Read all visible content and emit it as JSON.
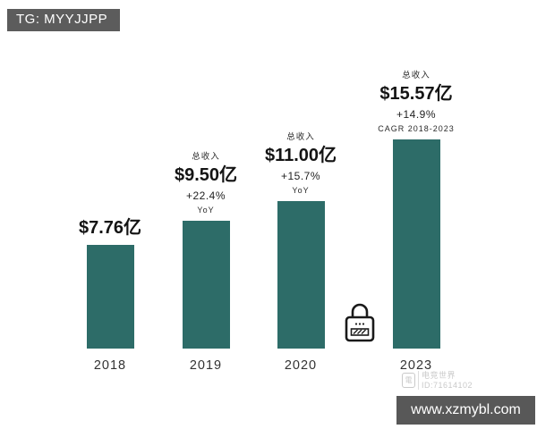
{
  "badge": {
    "text": "TG: MYYJJPP"
  },
  "chart_data": {
    "type": "bar",
    "title": "",
    "categories": [
      "2018",
      "2019",
      "2020",
      "2023"
    ],
    "values": [
      7.76,
      9.5,
      11.0,
      15.57
    ],
    "value_unit": "亿 (USD)",
    "bar_color": "#2D6C68",
    "ylim": [
      0,
      16
    ],
    "grid": false,
    "legend": false,
    "groups": [
      {
        "year": "2018",
        "header": "",
        "value": "$7.76亿",
        "growth": "",
        "growth_basis": ""
      },
      {
        "year": "2019",
        "header": "总收入",
        "value": "$9.50亿",
        "growth": "+22.4%",
        "growth_basis": "YoY"
      },
      {
        "year": "2020",
        "header": "总收入",
        "value": "$11.00亿",
        "growth": "+15.7%",
        "growth_basis": "YoY"
      },
      {
        "year": "2023",
        "header": "总收入",
        "value": "$15.57亿",
        "growth": "+14.9%",
        "growth_basis": "CAGR 2018-2023"
      }
    ]
  },
  "icons": {
    "lock": "padlock-icon"
  },
  "watermark": {
    "site": "电竞世界",
    "id": "ID:71614102",
    "icon_glyph": "電"
  },
  "url_banner": {
    "text": "www.xzmybl.com"
  },
  "colors": {
    "bar": "#2D6C68",
    "badge_bg": "#5c5c5c",
    "banner_bg": "#585858",
    "text_dark": "#141414",
    "watermark_gray": "#c9c9c9"
  }
}
